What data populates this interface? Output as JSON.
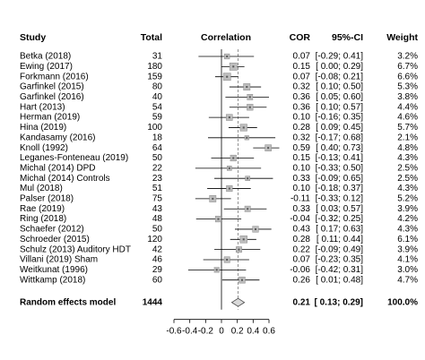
{
  "chart_data": {
    "type": "forest",
    "headers": {
      "study": "Study",
      "total": "Total",
      "plot": "Correlation",
      "value": "COR",
      "ci": "95%-CI",
      "weight": "Weight"
    },
    "categories": [
      "Betka (2018)",
      "Ewing (2017)",
      "Forkmann (2016)",
      "Garfinkel (2015)",
      "Garfinkel (2016)",
      "Hart (2013)",
      "Herman (2019)",
      "Hina (2019)",
      "Kandasamy (2016)",
      "Knoll (1992)",
      "Leganes-Fonteneau (2019)",
      "Michal (2014) DPD",
      "Michal (2014) Controls",
      "Mul (2018)",
      "Palser (2018)",
      "Rae (2019)",
      "Ring (2018)",
      "Schaefer (2012)",
      "Schroeder (2015)",
      "Schulz (2013) Auditory HDT",
      "Villani (2019) Sham",
      "Weitkunat (1996)",
      "Wittkamp (2018)"
    ],
    "totals": [
      31,
      180,
      159,
      80,
      40,
      54,
      59,
      100,
      18,
      64,
      50,
      22,
      23,
      51,
      75,
      43,
      48,
      50,
      120,
      42,
      46,
      29,
      60
    ],
    "values": [
      0.07,
      0.15,
      0.07,
      0.32,
      0.36,
      0.36,
      0.1,
      0.28,
      0.32,
      0.59,
      0.15,
      0.1,
      0.33,
      0.1,
      -0.11,
      0.33,
      -0.04,
      0.43,
      0.28,
      0.22,
      0.07,
      -0.06,
      0.26
    ],
    "value_labels": [
      "0.07",
      "0.15",
      "0.07",
      "0.32",
      "0.36",
      "0.36",
      "0.10",
      "0.28",
      "0.32",
      "0.59",
      "0.15",
      "0.10",
      "0.33",
      "0.10",
      "-0.11",
      "0.33",
      "-0.04",
      "0.43",
      "0.28",
      "0.22",
      "0.07",
      "-0.06",
      "0.26"
    ],
    "lower": [
      -0.29,
      0.0,
      -0.08,
      0.1,
      0.05,
      0.1,
      -0.16,
      0.09,
      -0.17,
      0.4,
      -0.13,
      -0.33,
      -0.09,
      -0.18,
      -0.33,
      0.03,
      -0.32,
      0.17,
      0.11,
      -0.09,
      -0.23,
      -0.42,
      0.01
    ],
    "upper": [
      0.41,
      0.29,
      0.21,
      0.5,
      0.6,
      0.57,
      0.35,
      0.45,
      0.68,
      0.73,
      0.41,
      0.5,
      0.65,
      0.37,
      0.12,
      0.57,
      0.25,
      0.63,
      0.44,
      0.49,
      0.35,
      0.31,
      0.48
    ],
    "ci_labels": [
      "[-0.29; 0.41]",
      "[ 0.00; 0.29]",
      "[-0.08; 0.21]",
      "[ 0.10; 0.50]",
      "[ 0.05; 0.60]",
      "[ 0.10; 0.57]",
      "[-0.16; 0.35]",
      "[ 0.09; 0.45]",
      "[-0.17; 0.68]",
      "[ 0.40; 0.73]",
      "[-0.13; 0.41]",
      "[-0.33; 0.50]",
      "[-0.09; 0.65]",
      "[-0.18; 0.37]",
      "[-0.33; 0.12]",
      "[ 0.03; 0.57]",
      "[-0.32; 0.25]",
      "[ 0.17; 0.63]",
      "[ 0.11; 0.44]",
      "[-0.09; 0.49]",
      "[-0.23; 0.35]",
      "[-0.42; 0.31]",
      "[ 0.01; 0.48]"
    ],
    "weights": [
      3.2,
      6.7,
      6.6,
      5.3,
      3.8,
      4.4,
      4.6,
      5.7,
      2.1,
      4.8,
      4.3,
      2.5,
      2.5,
      4.3,
      5.2,
      3.9,
      4.2,
      4.3,
      6.1,
      3.9,
      4.1,
      3.0,
      4.7
    ],
    "weight_labels": [
      "3.2%",
      "6.7%",
      "6.6%",
      "5.3%",
      "3.8%",
      "4.4%",
      "4.6%",
      "5.7%",
      "2.1%",
      "4.8%",
      "4.3%",
      "2.5%",
      "2.5%",
      "4.3%",
      "5.2%",
      "3.9%",
      "4.2%",
      "4.3%",
      "6.1%",
      "3.9%",
      "4.1%",
      "3.0%",
      "4.7%"
    ],
    "summary": {
      "label": "Random effects model",
      "total": 1444,
      "value": 0.21,
      "value_label": "0.21",
      "lower": 0.13,
      "upper": 0.29,
      "ci_label": "[ 0.13; 0.29]",
      "weight": 100,
      "weight_label": "100.0%"
    },
    "xlim": [
      -0.6,
      0.6
    ],
    "xticks": [
      -0.6,
      -0.4,
      -0.2,
      0,
      0.2,
      0.4,
      0.6
    ],
    "square_color": "#bdbdbd",
    "diamond_color": "#d9d9d9"
  }
}
